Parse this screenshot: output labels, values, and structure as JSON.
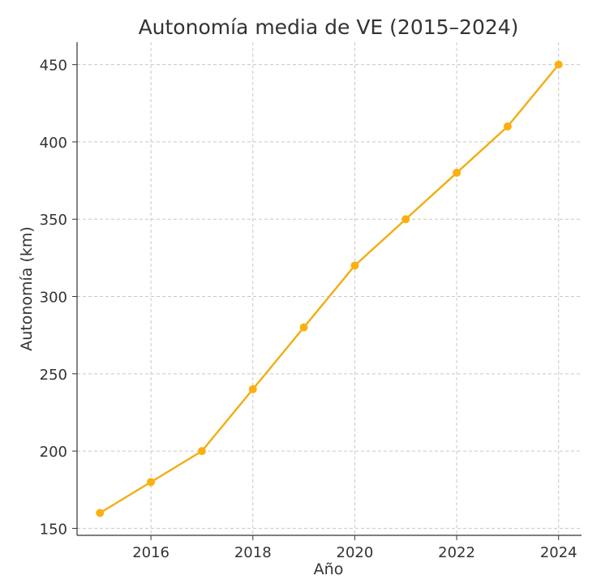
{
  "chart_data": {
    "type": "line",
    "title": "Autonomía media de VE (2015–2024)",
    "xlabel": "Año",
    "ylabel": "Autonomía (km)",
    "x": [
      2015,
      2016,
      2017,
      2018,
      2019,
      2020,
      2021,
      2022,
      2023,
      2024
    ],
    "series": [
      {
        "values": [
          160,
          180,
          200,
          240,
          280,
          320,
          350,
          380,
          410,
          450
        ]
      }
    ],
    "xticks": [
      2016,
      2018,
      2020,
      2022,
      2024
    ],
    "yticks": [
      150,
      200,
      250,
      300,
      350,
      400,
      450
    ],
    "xlim": [
      2014.55,
      2024.45
    ],
    "ylim": [
      145.5,
      464.5
    ],
    "grid": true,
    "line_color": "#f0ae10",
    "marker_color": "#fcb010"
  }
}
